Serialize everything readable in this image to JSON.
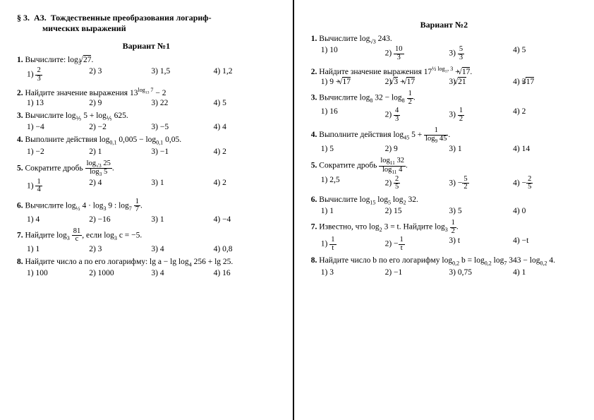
{
  "background_color": "#ffffff",
  "text_color": "#000000",
  "border_color": "#000000",
  "font_family": "Times New Roman",
  "font_size_pt": 11.5,
  "section": {
    "label": "§ 3.",
    "code": "АЗ.",
    "title1": "Тождественные преобразования логариф-",
    "title2": "мических выражений"
  },
  "v1": {
    "title": "Вариант №1",
    "q1": {
      "n": "1.",
      "t": "Вычислите: log",
      "b": "3",
      "r": "27",
      "suf": "."
    },
    "a1": {
      "1": "1)",
      "v1": "2/3",
      "2": "2) 3",
      "3": "3) 1,5",
      "4": "4) 1,2"
    },
    "q2": {
      "n": "2.",
      "t": "Найдите значение выражения 13",
      "e": "log",
      "eb": "13",
      "ep": "7",
      "suf": " − 2"
    },
    "a2": {
      "1": "1) 13",
      "2": "2) 9",
      "3": "3) 22",
      "4": "4) 5"
    },
    "q3": {
      "n": "3.",
      "t": "Вычислите log",
      "b1": "⅕",
      "m": " 5 + log",
      "b2": "⅕",
      "r": " 625."
    },
    "a3": {
      "1": "1) −4",
      "2": "2) −2",
      "3": "3) −5",
      "4": "4) 4"
    },
    "q4": {
      "n": "4.",
      "t": "Выполните действия log",
      "b1": "0,1",
      "m": " 0,005 − log",
      "b2": "0,1",
      "r": " 0,05."
    },
    "a4": {
      "1": "1) −2",
      "2": "2) 1",
      "3": "3) −1",
      "4": "4) 2"
    },
    "q5": {
      "n": "5.",
      "t": "Сократите дробь ",
      "fn": "log",
      "fnb": "√3",
      "fnv": "25",
      "fd": "log",
      "fdb": "3",
      "fdv": "5",
      "suf": "."
    },
    "a5": {
      "1": "1)",
      "v1": "1/4",
      "2": "2) 4",
      "3": "3) 1",
      "4": "4) 2"
    },
    "q6": {
      "n": "6.",
      "t": "Вычислите log",
      "b1": "½",
      "m1": " 4 · log",
      "b2": "3",
      "m2": " 9 : log",
      "b3": "7",
      "v3": "1/7",
      "suf": "."
    },
    "a6": {
      "1": "1) 4",
      "2": "2) −16",
      "3": "3) 1",
      "4": "4) −4"
    },
    "q7": {
      "n": "7.",
      "t": "Найдите log",
      "b": "3",
      "fn": "81",
      "fd": "c",
      "m": ", если log",
      "b2": "3",
      "r": " c = −5."
    },
    "a7": {
      "1": "1) 1",
      "2": "2) 3",
      "3": "3) 4",
      "4": "4) 0,8"
    },
    "q8": {
      "n": "8.",
      "t": "Найдите число a по его логарифму: lg a − lg log",
      "b": "4",
      "r": " 256 + lg 25."
    },
    "a8": {
      "1": "1) 100",
      "2": "2) 1000",
      "3": "3) 4",
      "4": "4) 16"
    }
  },
  "v2": {
    "title": "Вариант №2",
    "q1": {
      "n": "1.",
      "t": "Вычислите log",
      "b": "√3",
      "r": " 243."
    },
    "a1": {
      "1": "1) 10",
      "2": "2)",
      "f2": "10/3",
      "3": "3)",
      "f3": "5/3",
      "4": "4) 5"
    },
    "q2": {
      "n": "2.",
      "t": "Найдите значение выражения 17",
      "eh": "½",
      "e": " log",
      "eb": "17",
      "ep": " 3",
      "m": " + ",
      "r": "17",
      "suf": "."
    },
    "a2": {
      "1": "1) 9 + ",
      "r1": "17",
      "2": "2) ",
      "r2a": "3",
      "p2": " + ",
      "r2b": "17",
      "3": "3) ",
      "r3": "21",
      "4": "4) 3",
      "r4": "17"
    },
    "q3": {
      "n": "3.",
      "t": "Вычислите log",
      "b1": "8",
      "m": " 32 − log",
      "b2": "8",
      "fn": "1",
      "fd": "2",
      "suf": "."
    },
    "a3": {
      "1": "1) 16",
      "2": "2)",
      "f2": "4/3",
      "3": "3)",
      "f3": "1/2",
      "4": "4) 2"
    },
    "q4": {
      "n": "4.",
      "t": "Выполните действия log",
      "b1": "45",
      "m": " 5 + ",
      "fn": "1",
      "fd": "log",
      "fdb": "9",
      "fdv": "45",
      "suf": "."
    },
    "a4": {
      "1": "1) 5",
      "2": "2) 9",
      "3": "3) 1",
      "4": "4) 14"
    },
    "q5": {
      "n": "5.",
      "t": "Сократите дробь ",
      "fn": "log",
      "fnb": "11",
      "fnv": "32",
      "fd": "log",
      "fdb": "11",
      "fdv": "4",
      "suf": "."
    },
    "a5": {
      "1": "1) 2,5",
      "2": "2)",
      "f2": "2/5",
      "3": "3) −",
      "f3": "5/2",
      "4": "4) −",
      "f4": "2/5"
    },
    "q6": {
      "n": "6.",
      "t": "Вычислите log",
      "b1": "15",
      "m1": " log",
      "b2": "5",
      "m2": " log",
      "b3": "2",
      "r": " 32."
    },
    "a6": {
      "1": "1) 1",
      "2": "2) 15",
      "3": "3) 5",
      "4": "4) 0"
    },
    "q7": {
      "n": "7.",
      "t": "Известно, что log",
      "b1": "2",
      "m": " 3 = t. Найдите log",
      "b2": "3",
      "fn": "1",
      "fd": "2",
      "suf": "."
    },
    "a7": {
      "1": "1)",
      "f1": "1/t",
      "2": "2) −",
      "f2": "1/t",
      "3": "3) t",
      "4": "4) −t"
    },
    "q8": {
      "n": "8.",
      "t": "Найдите число b по его логарифму log",
      "b1": "0,2",
      "m1": " b = log",
      "b2": "0,2",
      "m2": " log",
      "b3": "7",
      "r": " 343 − log",
      "b4": "0,2",
      "suf": " 4."
    },
    "a8": {
      "1": "1) 3",
      "2": "2) −1",
      "3": "3) 0,75",
      "4": "4) 1"
    }
  }
}
